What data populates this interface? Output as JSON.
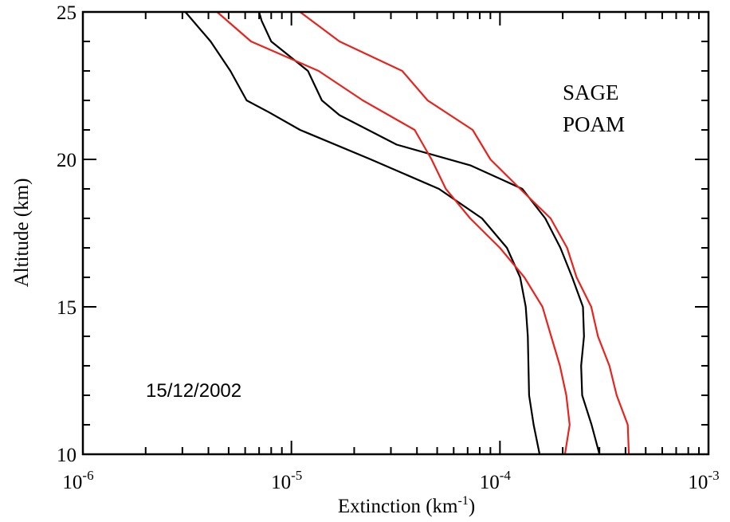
{
  "chart_data": {
    "type": "line",
    "xlabel": {
      "main": "Extinction (km",
      "sup": "-1",
      "end": ")"
    },
    "ylabel": "Altitude (km)",
    "x_scale": "log",
    "xlim": [
      1e-06,
      0.001
    ],
    "ylim": [
      10,
      25
    ],
    "x_ticks": [
      {
        "value": 1e-06,
        "base": "10",
        "exp": "-6"
      },
      {
        "value": 1e-05,
        "base": "10",
        "exp": "-5"
      },
      {
        "value": 0.0001,
        "base": "10",
        "exp": "-4"
      },
      {
        "value": 0.001,
        "base": "10",
        "exp": "-3"
      }
    ],
    "y_ticks": [
      {
        "value": 10,
        "label": "10"
      },
      {
        "value": 15,
        "label": "15"
      },
      {
        "value": 20,
        "label": "20"
      },
      {
        "value": 25,
        "label": "25"
      }
    ],
    "annotation": "15/12/2002",
    "legend": [
      {
        "label": "SAGE",
        "color": "#000000"
      },
      {
        "label": "POAM",
        "color": "#e8231c"
      }
    ],
    "series": [
      {
        "legend_index": 0,
        "color": "#000000",
        "points": [
          [
            0.000155,
            10
          ],
          [
            0.000145,
            11
          ],
          [
            0.000138,
            12
          ],
          [
            0.000137,
            13
          ],
          [
            0.000136,
            14
          ],
          [
            0.000133,
            15
          ],
          [
            0.000125,
            16
          ],
          [
            0.000108,
            17
          ],
          [
            8.2e-05,
            18
          ],
          [
            5.1e-05,
            19
          ],
          [
            2.4e-05,
            20
          ],
          [
            1.1e-05,
            21
          ],
          [
            7.8e-06,
            21.6
          ],
          [
            6.1e-06,
            22
          ],
          [
            5.1e-06,
            23
          ],
          [
            4.1e-06,
            24
          ],
          [
            3.1e-06,
            25
          ]
        ]
      },
      {
        "legend_index": 0,
        "color": "#000000",
        "points": [
          [
            0.0003,
            10
          ],
          [
            0.000275,
            11
          ],
          [
            0.000248,
            12
          ],
          [
            0.000245,
            13
          ],
          [
            0.000253,
            14
          ],
          [
            0.00025,
            15
          ],
          [
            0.000222,
            16
          ],
          [
            0.000195,
            17
          ],
          [
            0.000165,
            18
          ],
          [
            0.000128,
            19
          ],
          [
            7.2e-05,
            19.8
          ],
          [
            3.2e-05,
            20.5
          ],
          [
            1.7e-05,
            21.5
          ],
          [
            1.4e-05,
            22
          ],
          [
            1.2e-05,
            23
          ],
          [
            8e-06,
            24
          ],
          [
            7.2e-06,
            24.7
          ],
          [
            7e-06,
            25
          ]
        ]
      },
      {
        "legend_index": 1,
        "color": "#e8231c",
        "points": [
          [
            0.000205,
            10
          ],
          [
            0.000216,
            11
          ],
          [
            0.000208,
            12
          ],
          [
            0.000194,
            13
          ],
          [
            0.000176,
            14
          ],
          [
            0.00016,
            15
          ],
          [
            0.000131,
            16
          ],
          [
            0.0001,
            17
          ],
          [
            7.2e-05,
            18
          ],
          [
            5.5e-05,
            19
          ],
          [
            4.7e-05,
            20
          ],
          [
            3.9e-05,
            21
          ],
          [
            2.2e-05,
            22
          ],
          [
            1.35e-05,
            23
          ],
          [
            6.4e-06,
            24
          ],
          [
            4.4e-06,
            25
          ]
        ]
      },
      {
        "legend_index": 1,
        "color": "#e8231c",
        "points": [
          [
            0.000415,
            10
          ],
          [
            0.00041,
            11
          ],
          [
            0.000363,
            12
          ],
          [
            0.000335,
            13
          ],
          [
            0.000295,
            14
          ],
          [
            0.000274,
            15
          ],
          [
            0.000233,
            16
          ],
          [
            0.00021,
            17
          ],
          [
            0.000175,
            18
          ],
          [
            0.000125,
            19
          ],
          [
            9e-05,
            20
          ],
          [
            7.4e-05,
            21
          ],
          [
            4.5e-05,
            22
          ],
          [
            3.4e-05,
            23
          ],
          [
            1.7e-05,
            24
          ],
          [
            1.1e-05,
            25
          ]
        ]
      }
    ]
  }
}
